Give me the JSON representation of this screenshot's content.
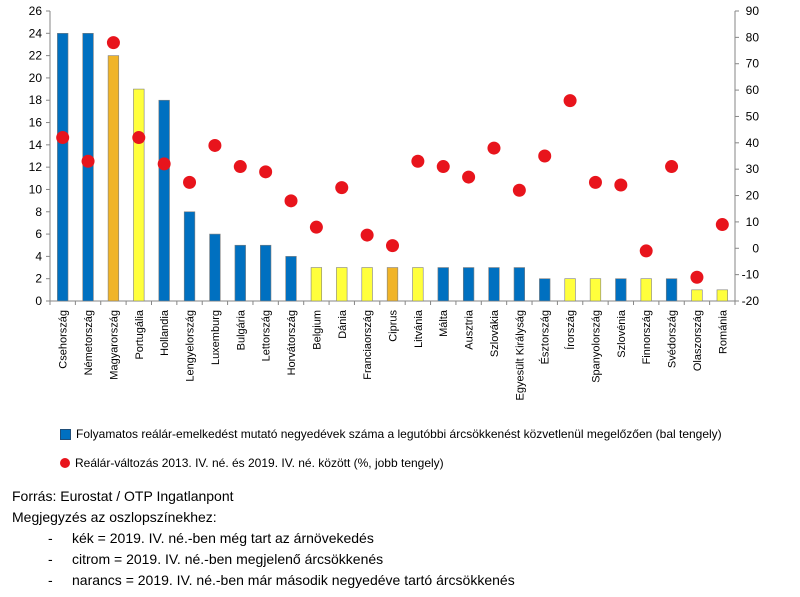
{
  "chart_data": {
    "type": "bar+scatter",
    "categories": [
      "Csehország",
      "Németország",
      "Magyarország",
      "Portugália",
      "Hollandia",
      "Lengyelország",
      "Luxemburg",
      "Bulgária",
      "Lettország",
      "Horvátország",
      "Belgium",
      "Dánia",
      "Franciaország",
      "Ciprus",
      "Litvánia",
      "Málta",
      "Ausztria",
      "Szlovákia",
      "Egyesült Királyság",
      "Észtország",
      "Írország",
      "Spanyolország",
      "Szlovénia",
      "Finnország",
      "Svédország",
      "Olaszország",
      "Románia"
    ],
    "bar_values": [
      24,
      24,
      22,
      19,
      18,
      8,
      6,
      5,
      5,
      4,
      3,
      3,
      3,
      3,
      3,
      3,
      3,
      3,
      3,
      2,
      2,
      2,
      2,
      2,
      2,
      1,
      1
    ],
    "bar_colors": [
      "blue",
      "blue",
      "orange",
      "yellow",
      "blue",
      "blue",
      "blue",
      "blue",
      "blue",
      "blue",
      "yellow",
      "yellow",
      "yellow",
      "orange",
      "yellow",
      "blue",
      "blue",
      "blue",
      "blue",
      "blue",
      "yellow",
      "yellow",
      "blue",
      "yellow",
      "blue",
      "yellow",
      "yellow"
    ],
    "dot_values": [
      42,
      33,
      78,
      42,
      32,
      25,
      39,
      31,
      29,
      18,
      8,
      23,
      5,
      1,
      33,
      31,
      27,
      38,
      22,
      35,
      56,
      25,
      24,
      -1,
      31,
      -11,
      9
    ],
    "y_left": {
      "min": 0,
      "max": 26,
      "step": 2
    },
    "y_right": {
      "min": -20,
      "max": 90,
      "step": 10
    },
    "colors": {
      "blue": "#0070c0",
      "orange": "#f0b428",
      "yellow": "#ffff3c",
      "dot": "#e8141c",
      "bar_border": "#7f7f7f"
    },
    "grid": false
  },
  "legend": {
    "bars": "Folyamatos reálár-emelkedést mutató negyedévek száma a legutóbbi árcsökkenést közvetlenül megelőzően (bal tengely)",
    "dots": "Reálár-változás 2013. IV. né. és 2019. IV. né. között (%, jobb tengely)"
  },
  "notes": {
    "source": "Forrás: Eurostat / OTP Ingatlanpont",
    "heading": "Megjegyzés az oszlopszínekhez:",
    "items": [
      "kék = 2019. IV. né.-ben még tart az árnövekedés",
      "citrom = 2019. IV. né.-ben megjelenő árcsökkenés",
      "narancs = 2019. IV. né.-ben már második negyedéve tartó árcsökkenés"
    ]
  }
}
